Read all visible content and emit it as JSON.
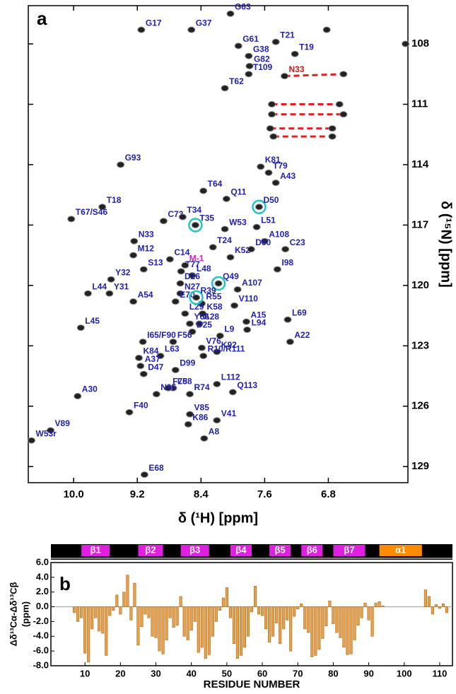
{
  "chart_data": [
    {
      "type": "scatter",
      "panel_label": "a",
      "xlabel": "δ (¹H) [ppm]",
      "ylabel": "δ (¹⁵N)  [ppm]",
      "xlim": [
        10.57,
        5.8
      ],
      "ylim": [
        106.1,
        129.8
      ],
      "xticks": [
        {
          "value": 10,
          "label": "10.0"
        },
        9.2,
        8.4,
        7.6,
        6.8
      ],
      "yticks": [
        108,
        111,
        114,
        117,
        120,
        123,
        126,
        129
      ],
      "series": [
        {
          "color": "#1f1fb4",
          "labels": [
            "G63",
            "G17",
            "G37",
            "G61",
            "T21",
            "T19",
            "G38",
            "G82",
            "T109",
            "T62",
            "K81",
            "G93",
            "T79",
            "A43",
            "T18",
            "T64",
            "Q11",
            "C73",
            "T34",
            "W53",
            "L51",
            "A108",
            "T67/S46",
            "N33",
            "C23",
            "T24",
            "K52",
            "C14",
            "M12",
            "D60",
            "S13",
            "T77",
            "I98",
            "L48",
            "Y32",
            "D26",
            "Y31",
            "A107",
            "L44",
            "N27",
            "A54",
            "E70",
            "R55",
            "V110",
            "L29",
            "K58",
            "Y66",
            "A28",
            "L69",
            "A15",
            "L45",
            "D25",
            "L94",
            "L9",
            "A22",
            "I65/F90",
            "F56",
            "V76",
            "K92",
            "R10/R111",
            "K84",
            "L63",
            "A37",
            "D99",
            "D47",
            "L88",
            "F75",
            "A30",
            "L112",
            "Q113",
            "N95",
            "R74",
            "F40",
            "V85",
            "V41",
            "K86",
            "V89",
            "W53r",
            "A8",
            "E68"
          ],
          "x": [
            8.03,
            9.15,
            8.52,
            7.93,
            7.46,
            7.22,
            7.8,
            7.79,
            7.8,
            8.1,
            7.65,
            9.41,
            7.55,
            7.46,
            9.64,
            8.37,
            8.08,
            8.87,
            8.63,
            8.1,
            7.7,
            7.6,
            10.03,
            9.24,
            7.34,
            8.25,
            8.03,
            8.79,
            9.25,
            7.77,
            9.12,
            8.65,
            7.44,
            8.51,
            9.53,
            8.66,
            9.55,
            7.94,
            9.82,
            8.66,
            9.25,
            8.72,
            8.39,
            7.98,
            8.6,
            8.38,
            8.54,
            8.42,
            7.31,
            7.83,
            9.91,
            8.51,
            7.82,
            8.16,
            7.28,
            9.13,
            8.75,
            8.39,
            8.2,
            8.37,
            9.18,
            8.91,
            9.16,
            8.72,
            9.12,
            8.75,
            8.81,
            9.95,
            8.2,
            8.0,
            8.96,
            8.54,
            9.3,
            8.54,
            8.2,
            8.56,
            10.29,
            10.53,
            8.36,
            9.11
          ],
          "values": [
            106.5,
            107.3,
            107.3,
            108.1,
            107.9,
            108.5,
            108.6,
            109.1,
            109.5,
            110.2,
            114.1,
            114.0,
            114.4,
            114.9,
            116.1,
            115.3,
            115.7,
            116.8,
            116.6,
            117.2,
            117.1,
            117.8,
            116.7,
            117.8,
            118.2,
            118.1,
            118.6,
            118.7,
            118.5,
            118.2,
            119.2,
            119.3,
            119.2,
            119.5,
            119.7,
            119.9,
            120.4,
            120.2,
            120.4,
            120.4,
            120.8,
            120.8,
            120.9,
            121.0,
            121.4,
            121.4,
            121.9,
            121.9,
            121.7,
            121.8,
            122.1,
            122.3,
            122.2,
            122.5,
            122.8,
            122.8,
            122.8,
            123.1,
            123.3,
            123.5,
            123.6,
            123.5,
            124.0,
            124.2,
            124.4,
            125.1,
            125.1,
            125.5,
            124.9,
            125.3,
            125.4,
            125.4,
            126.3,
            126.4,
            126.7,
            126.9,
            127.2,
            127.7,
            127.6,
            129.4
          ]
        },
        {
          "color": "#1f1fb4",
          "ring_color": "#22c4c4",
          "labels": [
            "D50",
            "T35",
            "Q49",
            "R39"
          ],
          "x": [
            7.67,
            8.47,
            8.18,
            8.46
          ],
          "values": [
            116.1,
            117.0,
            119.9,
            120.6
          ]
        },
        {
          "color": "#cc1a1a",
          "pair_line_color": "#e02020",
          "labels": [
            "N33",
            null
          ],
          "x": [
            7.35,
            6.61
          ],
          "values": [
            109.6,
            109.5
          ]
        },
        {
          "color": "#d020c0",
          "labels": [
            "M-1"
          ],
          "x": [
            8.6
          ],
          "values": [
            119.0
          ]
        },
        {
          "pair_line_color": "#e02020",
          "x": [
            7.51,
            6.66,
            7.51,
            6.61,
            7.53,
            6.75,
            7.49,
            6.75
          ],
          "values": [
            111.0,
            111.0,
            111.5,
            111.5,
            112.2,
            112.2,
            112.6,
            112.6
          ]
        },
        {
          "x": [
            6.82,
            5.83
          ],
          "values": [
            107.3,
            108.0
          ]
        }
      ]
    },
    {
      "type": "bar",
      "panel_label": "b",
      "xlabel": "RESIDUE NUMBER",
      "ylabel": [
        "Δδ¹³Cα-Δδ¹³Cβ",
        "(ppm)"
      ],
      "color": "#e8a04a",
      "xlim": [
        0.4,
        113.6
      ],
      "ylim": [
        -8,
        6
      ],
      "xticks": [
        10,
        20,
        30,
        40,
        50,
        60,
        70,
        80,
        90,
        100,
        110
      ],
      "yticks": [
        {
          "value": 6,
          "label": "6.0"
        },
        {
          "value": 4,
          "label": "4.0"
        },
        {
          "value": 2,
          "label": "2.0"
        },
        {
          "value": 0,
          "label": "0.0"
        },
        {
          "value": -2,
          "label": "-2.0"
        },
        {
          "value": -4,
          "label": "-4.0"
        },
        {
          "value": -6,
          "label": "-6.0"
        },
        {
          "value": -8,
          "label": "-8.0"
        }
      ],
      "x": [
        7,
        8,
        9,
        10,
        11,
        12,
        13,
        14,
        15,
        16,
        17,
        18,
        19,
        20,
        21,
        22,
        23,
        24,
        25,
        26,
        27,
        28,
        29,
        30,
        31,
        32,
        33,
        34,
        35,
        36,
        37,
        38,
        39,
        40,
        41,
        42,
        43,
        44,
        45,
        46,
        47,
        48,
        49,
        50,
        51,
        52,
        53,
        54,
        55,
        56,
        57,
        58,
        59,
        60,
        61,
        62,
        63,
        64,
        65,
        66,
        67,
        68,
        69,
        70,
        71,
        72,
        73,
        74,
        75,
        76,
        77,
        78,
        79,
        80,
        81,
        82,
        83,
        84,
        85,
        86,
        87,
        88,
        89,
        90,
        91,
        92,
        93,
        94,
        106,
        107,
        108,
        109,
        110,
        111,
        112
      ],
      "values": [
        -0.8,
        -2.0,
        -1.5,
        -6.3,
        -7.5,
        -3.0,
        -1.5,
        -3.3,
        -3.6,
        -6.6,
        -1.2,
        -0.5,
        1.6,
        -1.0,
        2.0,
        4.3,
        -1.8,
        3.2,
        -5.2,
        -2.7,
        -1.0,
        -1.5,
        -4.0,
        -4.2,
        -6.0,
        -6.4,
        -4.5,
        -1.5,
        -2.8,
        -2.5,
        1.4,
        -4.0,
        -4.5,
        -3.2,
        -2.0,
        -6.2,
        -5.5,
        -7.0,
        -6.5,
        -4.0,
        -2.0,
        -0.5,
        1.2,
        2.6,
        -1.5,
        -5.0,
        -7.0,
        -6.6,
        -5.5,
        -4.0,
        -0.7,
        2.8,
        -1.0,
        -1.2,
        -3.0,
        -4.8,
        -4.0,
        -2.2,
        -5.0,
        -3.0,
        -1.8,
        -6.0,
        -1.3,
        -0.3,
        0.4,
        -3.0,
        -3.5,
        -6.8,
        -6.6,
        -5.8,
        -4.3,
        -2.6,
        0.8,
        -2.3,
        -3.5,
        -4.2,
        -5.5,
        -6.5,
        -6.4,
        -4.5,
        -2.5,
        -1.5,
        0.5,
        -1.8,
        -4.0,
        0.5,
        0.7,
        0.1,
        2.3,
        1.4,
        -1.0,
        0.3,
        -0.2,
        0.4,
        -0.8
      ],
      "secondary_structure": [
        {
          "label": "β1",
          "start": 9,
          "end": 17,
          "color": "#e020e0"
        },
        {
          "label": "β2",
          "start": 25,
          "end": 32,
          "color": "#e020e0"
        },
        {
          "label": "β3",
          "start": 37,
          "end": 45,
          "color": "#e020e0"
        },
        {
          "label": "β4",
          "start": 51,
          "end": 57,
          "color": "#e020e0"
        },
        {
          "label": "β5",
          "start": 62,
          "end": 68,
          "color": "#e020e0"
        },
        {
          "label": "β6",
          "start": 71,
          "end": 77,
          "color": "#e020e0"
        },
        {
          "label": "β7",
          "start": 80,
          "end": 89,
          "color": "#e020e0"
        },
        {
          "label": "α1",
          "start": 93,
          "end": 105,
          "color": "#ff8c00"
        }
      ]
    }
  ]
}
